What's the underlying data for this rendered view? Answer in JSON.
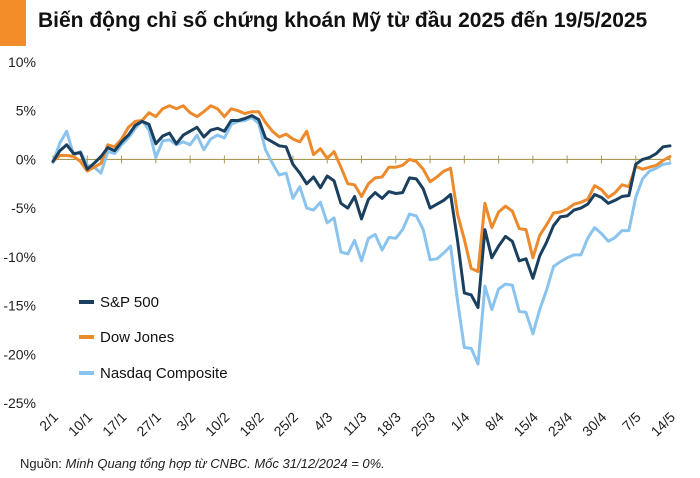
{
  "title": "Biến động chỉ số chứng khoán Mỹ từ đầu 2025 đến 19/5/2025",
  "source": {
    "prefix": "Nguồn:",
    "text": "Minh Quang tổng hợp từ CNBC. Mốc 31/12/2024 = 0%."
  },
  "colors": {
    "accent": "#f28c28",
    "zero_line": "#a89a55",
    "sp500": "#1b3f5e",
    "dow": "#ec8a2c",
    "nasdaq": "#8ac4ee"
  },
  "chart_data": {
    "type": "line",
    "title": "Biến động chỉ số chứng khoán Mỹ từ đầu 2025 đến 19/5/2025",
    "xlabel": "",
    "ylabel": "",
    "ylim": [
      -25,
      10
    ],
    "yticks": [
      10,
      5,
      0,
      -5,
      -10,
      -15,
      -20,
      -25
    ],
    "ytick_labels": [
      "10%",
      "5%",
      "0%",
      "-5%",
      "-10%",
      "-15%",
      "-20%",
      "-25%"
    ],
    "x_tick_labels": [
      "2/1",
      "10/1",
      "17/1",
      "27/1",
      "3/2",
      "10/2",
      "18/2",
      "25/2",
      "4/3",
      "11/3",
      "18/3",
      "25/3",
      "1/4",
      "8/4",
      "15/4",
      "23/4",
      "30/4",
      "7/5",
      "14/5"
    ],
    "grid": false,
    "legend_position": "lower-left",
    "series": [
      {
        "name": "S&P 500",
        "color_key": "sp500",
        "values": [
          -0.2,
          0.9,
          1.5,
          0.6,
          0.7,
          -1.0,
          -0.4,
          0.3,
          1.2,
          0.9,
          1.8,
          2.5,
          3.5,
          3.9,
          3.6,
          1.6,
          2.4,
          2.7,
          1.6,
          2.5,
          2.9,
          3.3,
          2.3,
          3.0,
          3.2,
          2.9,
          4.0,
          4.0,
          4.2,
          4.5,
          4.1,
          2.2,
          1.8,
          1.4,
          1.3,
          -0.5,
          -1.4,
          -2.5,
          -1.8,
          -2.9,
          -1.7,
          -2.2,
          -4.5,
          -5.0,
          -3.8,
          -6.1,
          -4.1,
          -3.4,
          -4.0,
          -3.3,
          -3.5,
          -3.4,
          -1.9,
          -2.0,
          -3.0,
          -5.0,
          -4.6,
          -4.2,
          -3.6,
          -8.3,
          -13.7,
          -13.9,
          -15.2,
          -7.2,
          -10.1,
          -8.9,
          -7.9,
          -8.4,
          -10.4,
          -10.2,
          -12.2,
          -9.9,
          -8.5,
          -6.8,
          -5.9,
          -5.8,
          -5.2,
          -5.0,
          -4.6,
          -3.6,
          -3.9,
          -4.5,
          -4.2,
          -3.8,
          -3.7,
          -0.5,
          0.0,
          0.2,
          0.6,
          1.3,
          1.4
        ]
      },
      {
        "name": "Dow Jones",
        "color_key": "dow",
        "values": [
          -0.2,
          0.4,
          0.4,
          0.3,
          -0.2,
          -1.2,
          -0.8,
          -0.4,
          1.5,
          1.3,
          2.1,
          3.3,
          3.9,
          4.0,
          4.8,
          4.4,
          5.2,
          5.5,
          5.2,
          5.5,
          4.8,
          4.4,
          4.9,
          5.5,
          5.2,
          4.4,
          5.2,
          5.0,
          4.7,
          4.9,
          4.9,
          3.8,
          2.9,
          2.3,
          2.6,
          2.1,
          1.8,
          2.9,
          0.5,
          1.1,
          0.1,
          0.8,
          -0.8,
          -2.5,
          -2.6,
          -3.8,
          -2.5,
          -1.9,
          -1.8,
          -0.8,
          -0.8,
          -0.6,
          0.0,
          -0.2,
          -1.0,
          -2.3,
          -1.8,
          -1.2,
          -0.9,
          -5.6,
          -8.2,
          -11.2,
          -11.5,
          -4.5,
          -7.0,
          -5.4,
          -4.8,
          -5.3,
          -7.1,
          -7.2,
          -10.1,
          -7.8,
          -6.7,
          -5.5,
          -5.4,
          -5.1,
          -4.6,
          -4.4,
          -4.1,
          -2.7,
          -3.1,
          -3.9,
          -3.4,
          -2.6,
          -2.8,
          -0.7,
          -1.0,
          -0.8,
          -0.6,
          -0.1,
          0.3
        ]
      },
      {
        "name": "Nasdaq Composite",
        "color_key": "nasdaq",
        "values": [
          -0.3,
          1.7,
          2.9,
          0.4,
          0.8,
          -0.6,
          -0.8,
          -1.4,
          0.8,
          0.6,
          1.5,
          2.2,
          3.2,
          4.0,
          3.0,
          0.2,
          1.9,
          2.0,
          1.5,
          1.8,
          1.5,
          2.5,
          1.0,
          2.1,
          2.5,
          2.2,
          3.6,
          3.9,
          4.0,
          4.3,
          3.7,
          1.0,
          -0.4,
          -1.6,
          -1.4,
          -4.0,
          -2.8,
          -5.0,
          -5.2,
          -4.4,
          -6.5,
          -6.0,
          -9.5,
          -9.7,
          -8.3,
          -10.4,
          -8.1,
          -7.7,
          -9.3,
          -8.0,
          -8.1,
          -7.2,
          -5.6,
          -5.8,
          -7.2,
          -10.3,
          -10.2,
          -9.6,
          -8.9,
          -14.5,
          -19.3,
          -19.4,
          -21.0,
          -13.0,
          -15.4,
          -13.3,
          -12.8,
          -12.9,
          -15.6,
          -15.7,
          -17.9,
          -15.4,
          -13.4,
          -11.0,
          -10.5,
          -10.1,
          -9.8,
          -9.8,
          -8.1,
          -7.0,
          -7.6,
          -8.4,
          -8.0,
          -7.3,
          -7.3,
          -3.9,
          -2.0,
          -1.2,
          -0.9,
          -0.5,
          -0.4
        ]
      }
    ]
  }
}
